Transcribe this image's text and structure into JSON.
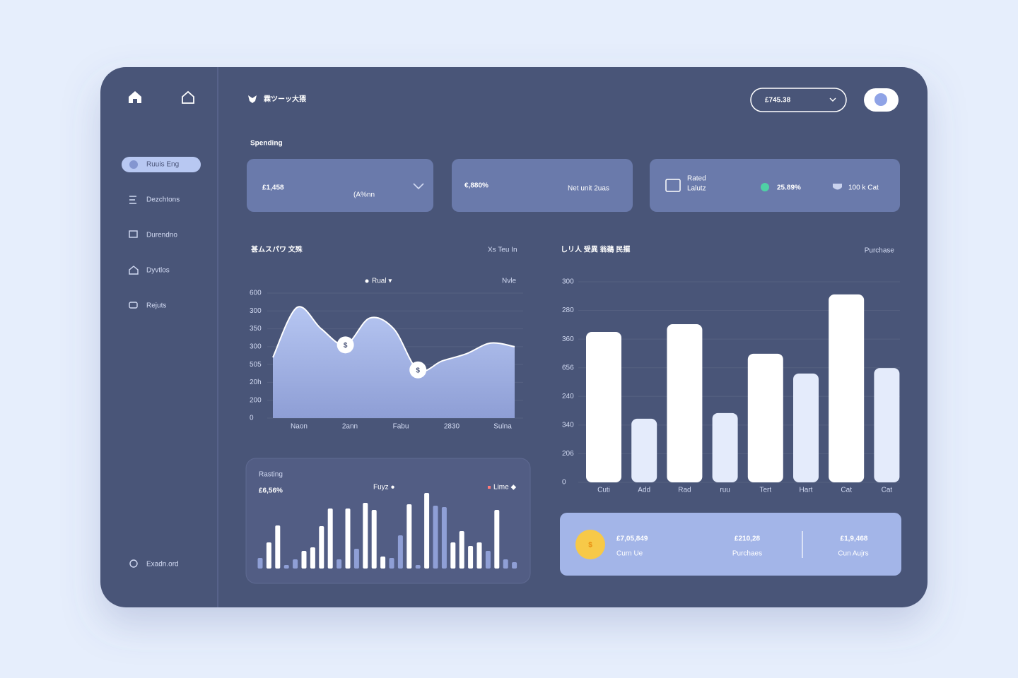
{
  "sidebar": {
    "nav": [
      "Ruuis Eng",
      "Dezchtons",
      "Durendno",
      "Dyvtlos",
      "Rejuts"
    ],
    "footer": "Exadn.ord"
  },
  "header": {
    "title": "霖ツーッ大猥",
    "balance": "£745.38"
  },
  "section_title": "Spending",
  "stats": [
    {
      "value": "£1,458",
      "note": "(A%nn"
    },
    {
      "value": "€,880%",
      "note": "Net unit 2uas"
    },
    {
      "label": [
        "Rated",
        "Lalutz"
      ],
      "items": [
        "25.89%",
        "100 k Cat"
      ]
    }
  ],
  "area_chart": {
    "type": "area",
    "title": "甚ムスパワ 文殊",
    "subtitle": "Xs Teu In",
    "legend": "Rual ▾",
    "legend_right": "Nvle",
    "marker_label": "$",
    "categories": [
      "Naon",
      "2ann",
      "Fabu",
      "2830",
      "Sulna"
    ],
    "values": [
      3.4,
      6.2,
      5.0,
      4.1,
      5.6,
      5.0,
      2.7,
      3.2,
      3.6,
      4.2,
      4.0
    ],
    "ylim": [
      0,
      7
    ],
    "yticks": [
      0,
      {
        "value": 1,
        "label": "200"
      },
      {
        "value": 2,
        "label": "20h"
      },
      {
        "value": 3,
        "label": "505"
      },
      {
        "value": 4,
        "label": "300"
      },
      {
        "value": 5,
        "label": "350"
      },
      {
        "value": 6,
        "label": "300"
      },
      {
        "value": 7,
        "label": "600"
      }
    ],
    "grid": true
  },
  "bar_chart": {
    "type": "bar",
    "title": "しリ人 受異 翁鵜 民擺",
    "subtitle": "Purchase",
    "categories": [
      "Cuti",
      "Add",
      "Rad",
      "ruu",
      "Tert",
      "Hart",
      "Cat",
      "Cat"
    ],
    "values": [
      5.25,
      2.22,
      5.52,
      2.42,
      4.49,
      3.8,
      6.56,
      3.99
    ],
    "colors": [
      "#ffffff",
      "#e4ebfb",
      "#ffffff",
      "#e4ebfb",
      "#ffffff",
      "#e4ebfb",
      "#ffffff",
      "#e4ebfb"
    ],
    "ylim": [
      0,
      7
    ],
    "yticks": [
      0,
      {
        "value": 1,
        "label": "206"
      },
      {
        "value": 2,
        "label": "340"
      },
      {
        "value": 3,
        "label": "240"
      },
      {
        "value": 4,
        "label": "656"
      },
      {
        "value": 5,
        "label": "360"
      },
      {
        "value": 6,
        "label": "280"
      },
      {
        "value": 7,
        "label": "300"
      }
    ],
    "grid": true
  },
  "mini_chart": {
    "type": "bar",
    "title": "Rasting",
    "value": "£6,56%",
    "legend": "Fuyz ●",
    "legend_right": "Lime ◆",
    "values": [
      15,
      37,
      61,
      5,
      13,
      25,
      30,
      60,
      85,
      13,
      85,
      28,
      93,
      83,
      17,
      15,
      47,
      91,
      5,
      107,
      89,
      87,
      37,
      53,
      32,
      37,
      25,
      83,
      13,
      9
    ],
    "colors": [
      "#8f9fd6",
      "#ffffff",
      "#ffffff",
      "#8f9fd6",
      "#8f9fd6",
      "#ffffff",
      "#ffffff",
      "#ffffff",
      "#ffffff",
      "#8f9fd6",
      "#ffffff",
      "#8f9fd6",
      "#ffffff",
      "#ffffff",
      "#ffffff",
      "#8f9fd6",
      "#8f9fd6",
      "#ffffff",
      "#8f9fd6",
      "#ffffff",
      "#8f9fd6",
      "#8f9fd6",
      "#ffffff",
      "#ffffff",
      "#ffffff",
      "#ffffff",
      "#8f9fd6",
      "#ffffff",
      "#8f9fd6",
      "#8f9fd6"
    ]
  },
  "summary_icon": "$",
  "summary": [
    {
      "value": "£7,05,849",
      "label": "Curn Ue"
    },
    {
      "value": "£210,28",
      "label": "Purchaes"
    },
    {
      "value": "£1,9,468",
      "label": "Cun Aujrs"
    }
  ]
}
